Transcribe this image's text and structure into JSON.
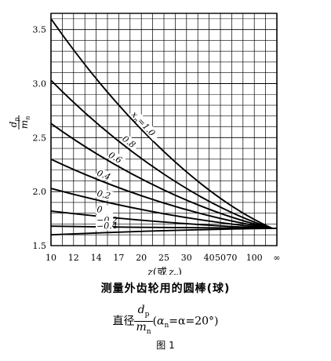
{
  "chart_data": {
    "type": "line",
    "y_axis": {
      "label_num": "d",
      "label_num_sub": "p",
      "label_den": "m",
      "label_den_sub": "n",
      "ylim": [
        1.5,
        3.65
      ],
      "ticks": [
        "3.5",
        "3.0",
        "2.5",
        "2.0",
        "1.5"
      ],
      "tick_values": [
        3.5,
        3.0,
        2.5,
        2.0,
        1.5
      ]
    },
    "x_axis": {
      "label_parts": [
        "z",
        "(或",
        "z",
        "v",
        ")"
      ],
      "ticks": [
        "10",
        "12",
        "14",
        "17",
        "20",
        "25",
        "30",
        "40",
        "50",
        "70",
        "100",
        "∞"
      ],
      "tick_positions": [
        0,
        2,
        4,
        6,
        8,
        10,
        12,
        14,
        15,
        16,
        18,
        20
      ]
    },
    "grid": true,
    "convergence": {
      "x": 19.6,
      "y": 1.66
    },
    "curve_label_prefix": {
      "sym": "x",
      "sub": "n",
      "eq": "="
    },
    "series": [
      {
        "name": "1.0",
        "display": "1.0",
        "start_y": 3.6,
        "label_at": 7.0
      },
      {
        "name": "0.8",
        "display": "0.8",
        "start_y": 3.03,
        "label_at": 6.2
      },
      {
        "name": "0.6",
        "display": "0.6",
        "start_y": 2.63,
        "label_at": 5.0
      },
      {
        "name": "0.4",
        "display": "0.4",
        "start_y": 2.3,
        "label_at": 4.0
      },
      {
        "name": "0.2",
        "display": "0.2",
        "start_y": 2.03,
        "label_at": 4.0
      },
      {
        "name": "0",
        "display": "0",
        "start_y": 1.82,
        "label_at": 4.0
      },
      {
        "name": "-0.2",
        "display": "−0.2",
        "start_y": 1.68,
        "label_at": 4.0
      },
      {
        "name": "-0.4",
        "display": "−0.4",
        "start_y": 1.6,
        "label_at": 4.0
      }
    ]
  },
  "caption": {
    "title": "测量外齿轮用的圆棒(球)",
    "formula_prefix": "直径",
    "frac_num": "d",
    "frac_num_sub": "p",
    "frac_den": "m",
    "frac_den_sub": "n",
    "formula_suffix_1": "(",
    "alpha_n": "α",
    "alpha_n_sub": "n",
    "formula_suffix_2": "=α=20°)",
    "figure": "图 1"
  }
}
